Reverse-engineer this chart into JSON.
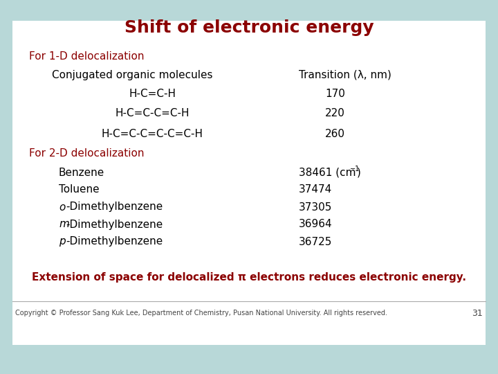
{
  "title": "Shift of electronic energy",
  "title_color": "#8B0000",
  "slide_bg": "#b8d8d8",
  "white_bg": "#ffffff",
  "section1_label": "For 1-D delocalization",
  "section2_label": "For 2-D delocalization",
  "section_color": "#8B0000",
  "col1_header": "Conjugated organic molecules",
  "col2_header": "Transition (λ, nm)",
  "rows_1d": [
    [
      "H-C=C-H",
      "170"
    ],
    [
      "H-C=C-C=C-H",
      "220"
    ],
    [
      "H-C=C-C=C-C=C-H",
      "260"
    ]
  ],
  "rows_2d_col1_prefix": [
    "",
    "",
    "o",
    "m",
    "p"
  ],
  "rows_2d_col1_rest": [
    "Benzene",
    "Toluene",
    "-Dimethylbenzene",
    "-Dimethylbenzene",
    "-Dimethylbenzene"
  ],
  "rows_2d_col2": [
    "38461 (cm⁻¹)",
    "37474",
    "37305",
    "36964",
    "36725"
  ],
  "footer_text": "Extension of space for delocalized π electrons reduces electronic energy.",
  "footer_color": "#8B0000",
  "copyright_text": "Copyright © Professor Sang Kuk Lee, Department of Chemistry, Pusan National University. All rights reserved.",
  "page_number": "31",
  "copyright_color": "#444444",
  "font_size_title": 18,
  "font_size_body": 11,
  "font_size_footer": 11,
  "font_size_copyright": 7
}
